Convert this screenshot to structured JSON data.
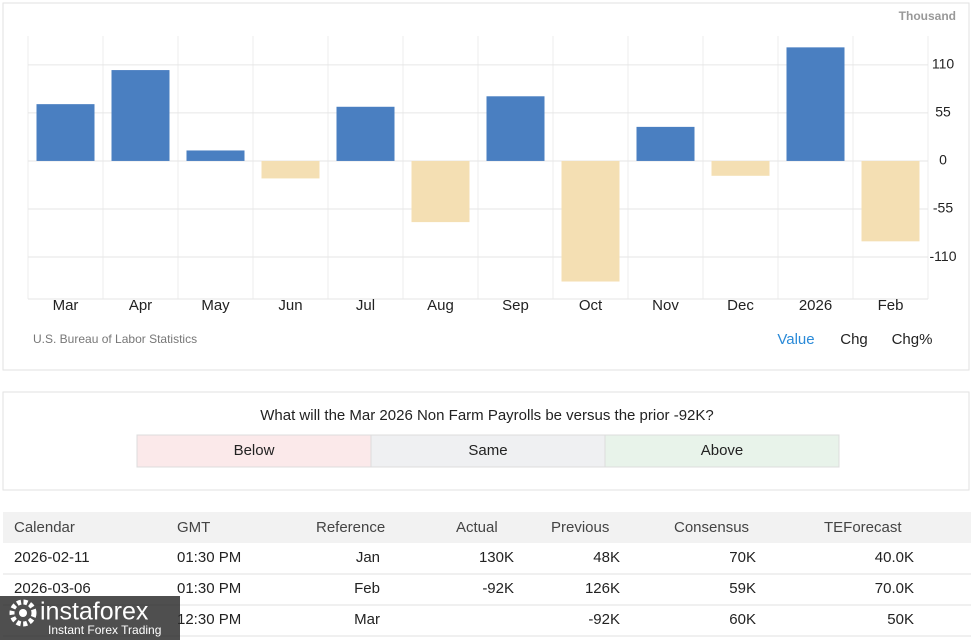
{
  "chart_data": {
    "type": "bar",
    "unit": "Thousand",
    "categories": [
      "Mar",
      "Apr",
      "May",
      "Jun",
      "Jul",
      "Aug",
      "Sep",
      "Oct",
      "Nov",
      "Dec",
      "2026",
      "Feb"
    ],
    "values": [
      65,
      104,
      12,
      -20,
      62,
      -70,
      74,
      -138,
      39,
      -17,
      130,
      -92
    ],
    "color": "#4a7fc1",
    "negative_color": "#f4dfb3",
    "ylim": [
      -158,
      143
    ],
    "yticks": [
      110,
      55,
      0,
      -55,
      -110
    ],
    "grid": true,
    "source": "U.S. Bureau of Labor Statistics"
  },
  "chart_tabs": [
    "Value",
    "Chg",
    "Chg%"
  ],
  "poll": {
    "question": "What will the Mar 2026 Non Farm Payrolls be versus the prior -92K?",
    "options": [
      "Below",
      "Same",
      "Above"
    ]
  },
  "table": {
    "columns": [
      "Calendar",
      "GMT",
      "Reference",
      "Actual",
      "Previous",
      "Consensus",
      "TEForecast"
    ],
    "rows": [
      [
        "2026-02-11",
        "01:30 PM",
        "Jan",
        "130K",
        "48K",
        "70K",
        "40.0K"
      ],
      [
        "2026-03-06",
        "01:30 PM",
        "Feb",
        "-92K",
        "126K",
        "59K",
        "70.0K"
      ],
      [
        null,
        "12:30 PM",
        "Mar",
        null,
        "-92K",
        "60K",
        "50K"
      ]
    ]
  },
  "watermark": {
    "brand": "instaforex",
    "tagline": "Instant Forex Trading"
  }
}
